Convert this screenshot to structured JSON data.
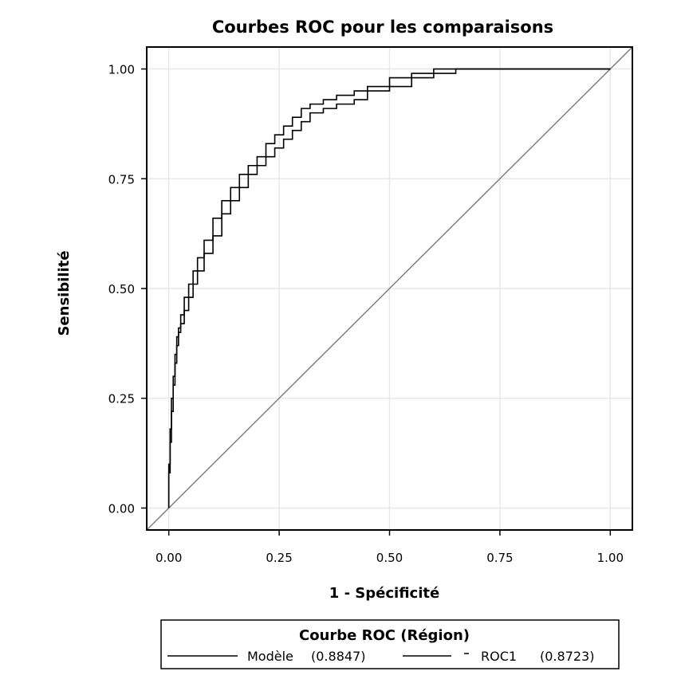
{
  "chart_data": {
    "type": "line",
    "title": "Courbes ROC pour les comparaisons",
    "xlabel": "1 - Spécificité",
    "ylabel": "Sensibilité",
    "xlim": [
      -0.05,
      1.05
    ],
    "ylim": [
      -0.05,
      1.05
    ],
    "x_ticks": [
      "0.00",
      "0.25",
      "0.50",
      "0.75",
      "1.00"
    ],
    "y_ticks": [
      "0.00",
      "0.25",
      "0.50",
      "0.75",
      "1.00"
    ],
    "grid": true,
    "legend": {
      "title": "Courbe ROC (Région)",
      "position": "bottom",
      "entries": [
        {
          "label": "Modèle",
          "value": "(0.8847)"
        },
        {
          "label": "ROC1",
          "value": "(0.8723)"
        }
      ]
    },
    "series": [
      {
        "name": "Modèle",
        "x": [
          0.0,
          0.003,
          0.006,
          0.01,
          0.014,
          0.018,
          0.022,
          0.027,
          0.035,
          0.045,
          0.055,
          0.065,
          0.08,
          0.1,
          0.12,
          0.14,
          0.16,
          0.18,
          0.2,
          0.22,
          0.24,
          0.26,
          0.28,
          0.3,
          0.32,
          0.35,
          0.38,
          0.42,
          0.45,
          0.5,
          0.55,
          0.6,
          0.65,
          0.7,
          0.8,
          0.9,
          1.0
        ],
        "y": [
          0.0,
          0.1,
          0.18,
          0.25,
          0.3,
          0.35,
          0.39,
          0.41,
          0.44,
          0.48,
          0.51,
          0.54,
          0.57,
          0.61,
          0.66,
          0.7,
          0.73,
          0.76,
          0.78,
          0.8,
          0.83,
          0.85,
          0.87,
          0.89,
          0.91,
          0.92,
          0.93,
          0.94,
          0.95,
          0.96,
          0.98,
          0.99,
          1.0,
          1.0,
          1.0,
          1.0,
          1.0
        ]
      },
      {
        "name": "ROC1",
        "x": [
          0.0,
          0.003,
          0.006,
          0.01,
          0.014,
          0.018,
          0.022,
          0.027,
          0.035,
          0.045,
          0.055,
          0.065,
          0.08,
          0.1,
          0.12,
          0.14,
          0.16,
          0.18,
          0.2,
          0.22,
          0.24,
          0.26,
          0.28,
          0.3,
          0.32,
          0.35,
          0.38,
          0.42,
          0.45,
          0.5,
          0.55,
          0.6,
          0.65,
          0.7,
          0.8,
          0.9,
          1.0
        ],
        "y": [
          0.0,
          0.08,
          0.15,
          0.22,
          0.28,
          0.33,
          0.37,
          0.4,
          0.42,
          0.45,
          0.48,
          0.51,
          0.54,
          0.58,
          0.62,
          0.67,
          0.7,
          0.73,
          0.76,
          0.78,
          0.8,
          0.82,
          0.84,
          0.86,
          0.88,
          0.9,
          0.91,
          0.92,
          0.93,
          0.95,
          0.96,
          0.98,
          0.99,
          1.0,
          1.0,
          1.0,
          1.0
        ]
      }
    ],
    "reference_line": {
      "x": [
        0,
        1
      ],
      "y": [
        0,
        1
      ]
    }
  },
  "colors": {
    "curve": "#000000",
    "reference": "#808080",
    "grid": "#e8e8e8",
    "frame": "#000000"
  }
}
